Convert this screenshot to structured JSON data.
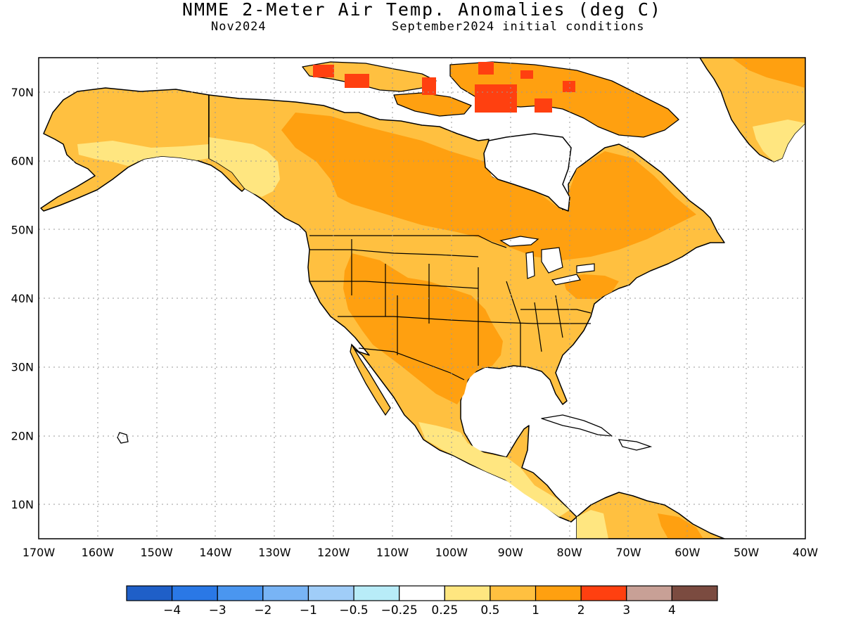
{
  "header": {
    "title": "NMME 2-Meter Air Temp. Anomalies (deg C)",
    "target": "Nov2024",
    "init": "September2024 initial conditions"
  },
  "map": {
    "lon_range": [
      -170,
      -40
    ],
    "lat_range": [
      5,
      75
    ],
    "lon_ticks": [
      "170W",
      "160W",
      "150W",
      "140W",
      "130W",
      "120W",
      "110W",
      "100W",
      "90W",
      "80W",
      "70W",
      "60W",
      "50W",
      "40W"
    ],
    "lat_ticks": [
      "10N",
      "20N",
      "30N",
      "40N",
      "50N",
      "60N",
      "70N"
    ],
    "grid": true,
    "land_outline_color": "#000000"
  },
  "colorbar": {
    "colors": [
      "#1f5fc8",
      "#2a78e6",
      "#4a96f0",
      "#78b4f5",
      "#a0cdf8",
      "#b8ecf8",
      "#ffffff",
      "#ffe680",
      "#ffc040",
      "#ffa010",
      "#ff4010",
      "#c8a096",
      "#7b4b40"
    ],
    "labels": [
      "−4",
      "−3",
      "−2",
      "−1",
      "−0.5",
      "−0.25",
      "0.25",
      "0.5",
      "1",
      "2",
      "3",
      "4"
    ]
  }
}
